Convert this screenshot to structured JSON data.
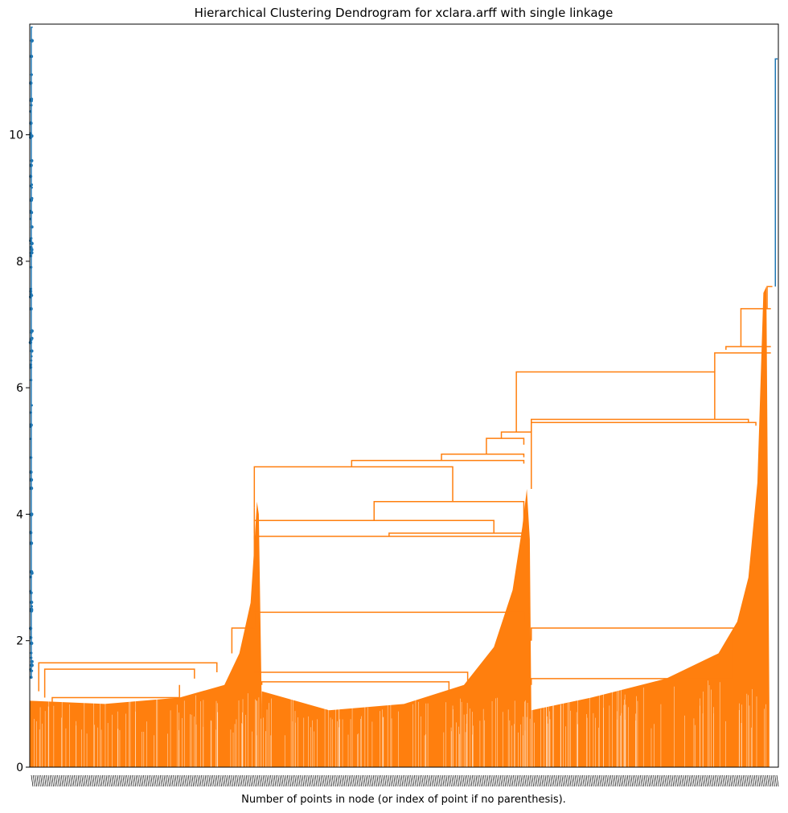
{
  "chart_data": {
    "type": "dendrogram",
    "title": "Hierarchical Clustering Dendrogram for xclara.arff with single linkage",
    "xlabel": "Number of points in node (or index of point if no parenthesis).",
    "ylabel": "",
    "ylim": [
      0,
      11.75
    ],
    "yticks": [
      0,
      2,
      4,
      6,
      8,
      10
    ],
    "linkage": "single",
    "colors": {
      "above_threshold": "#1f77b4",
      "cluster": "#ff7f0e"
    },
    "major_merges": [
      {
        "height": 11.2,
        "color": "#1f77b4"
      },
      {
        "height": 7.6,
        "color": "#ff7f0e"
      },
      {
        "height": 7.25,
        "color": "#ff7f0e"
      },
      {
        "height": 6.65,
        "color": "#ff7f0e"
      },
      {
        "height": 6.55,
        "color": "#ff7f0e"
      },
      {
        "height": 6.25,
        "color": "#ff7f0e"
      },
      {
        "height": 5.5,
        "color": "#ff7f0e"
      },
      {
        "height": 5.45,
        "color": "#ff7f0e"
      },
      {
        "height": 5.3,
        "color": "#ff7f0e"
      },
      {
        "height": 5.2,
        "color": "#ff7f0e"
      },
      {
        "height": 4.95,
        "color": "#ff7f0e"
      },
      {
        "height": 4.85,
        "color": "#ff7f0e"
      },
      {
        "height": 4.75,
        "color": "#ff7f0e"
      },
      {
        "height": 4.2,
        "color": "#ff7f0e"
      },
      {
        "height": 3.9,
        "color": "#ff7f0e"
      },
      {
        "height": 3.8,
        "color": "#ff7f0e"
      },
      {
        "height": 3.7,
        "color": "#ff7f0e"
      },
      {
        "height": 3.65,
        "color": "#ff7f0e"
      },
      {
        "height": 2.45,
        "color": "#ff7f0e"
      },
      {
        "height": 2.2,
        "color": "#ff7f0e"
      },
      {
        "height": 1.65,
        "color": "#ff7f0e"
      },
      {
        "height": 1.55,
        "color": "#ff7f0e"
      },
      {
        "height": 1.4,
        "color": "#ff7f0e"
      }
    ]
  }
}
